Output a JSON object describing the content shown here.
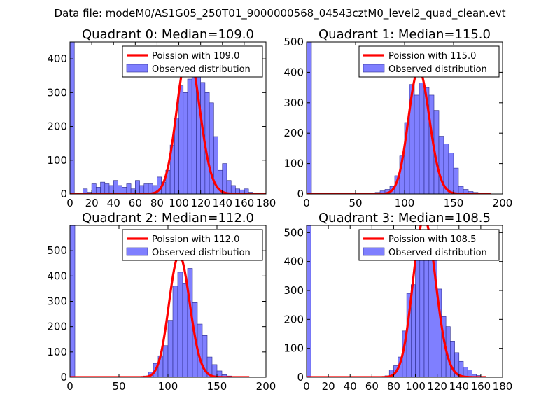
{
  "figure": {
    "suptitle": "Data file: modeM0/AS1G05_250T01_9000000568_04543cztM0_level2_quad_clean.evt"
  },
  "colors": {
    "bar_fill": "#7f7fff",
    "bar_stroke": "#2a2a8c",
    "curve": "#ff0000",
    "axis": "#000000",
    "background": "#ffffff"
  },
  "chart_data": [
    {
      "type": "bar",
      "title": "Quadrant 0: Median=109.0",
      "xlim": [
        0,
        180
      ],
      "ylim": [
        0,
        450
      ],
      "xticks": [
        0,
        20,
        40,
        60,
        80,
        100,
        120,
        140,
        160,
        180
      ],
      "yticks": [
        0,
        100,
        200,
        300,
        400
      ],
      "bin_width": 4,
      "bins": [
        [
          0,
          455
        ],
        [
          12,
          15
        ],
        [
          16,
          5
        ],
        [
          20,
          30
        ],
        [
          24,
          20
        ],
        [
          28,
          35
        ],
        [
          32,
          30
        ],
        [
          36,
          25
        ],
        [
          40,
          40
        ],
        [
          44,
          25
        ],
        [
          48,
          20
        ],
        [
          52,
          30
        ],
        [
          56,
          15
        ],
        [
          60,
          40
        ],
        [
          64,
          25
        ],
        [
          68,
          30
        ],
        [
          72,
          30
        ],
        [
          76,
          25
        ],
        [
          80,
          50
        ],
        [
          84,
          35
        ],
        [
          88,
          70
        ],
        [
          92,
          145
        ],
        [
          96,
          225
        ],
        [
          100,
          320
        ],
        [
          104,
          300
        ],
        [
          108,
          340
        ],
        [
          112,
          375
        ],
        [
          116,
          375
        ],
        [
          120,
          330
        ],
        [
          124,
          300
        ],
        [
          128,
          270
        ],
        [
          132,
          170
        ],
        [
          136,
          70
        ],
        [
          140,
          90
        ],
        [
          144,
          40
        ],
        [
          148,
          25
        ],
        [
          152,
          15
        ],
        [
          156,
          12
        ],
        [
          160,
          15
        ],
        [
          164,
          5
        ],
        [
          168,
          3
        ]
      ],
      "median": 109.0,
      "curve_xmax": 180,
      "legend": [
        "Poission with 109.0",
        "Observed distribution"
      ]
    },
    {
      "type": "bar",
      "title": "Quadrant 1: Median=115.0",
      "xlim": [
        0,
        200
      ],
      "ylim": [
        0,
        500
      ],
      "xticks": [
        0,
        50,
        100,
        150,
        200
      ],
      "yticks": [
        0,
        100,
        200,
        300,
        400,
        500
      ],
      "bin_width": 5,
      "bins": [
        [
          0,
          500
        ],
        [
          70,
          5
        ],
        [
          75,
          10
        ],
        [
          80,
          15
        ],
        [
          85,
          25
        ],
        [
          90,
          60
        ],
        [
          95,
          125
        ],
        [
          100,
          235
        ],
        [
          105,
          360
        ],
        [
          110,
          325
        ],
        [
          115,
          365
        ],
        [
          120,
          350
        ],
        [
          125,
          325
        ],
        [
          130,
          275
        ],
        [
          135,
          190
        ],
        [
          140,
          165
        ],
        [
          145,
          135
        ],
        [
          150,
          85
        ],
        [
          155,
          25
        ],
        [
          160,
          15
        ],
        [
          165,
          8
        ],
        [
          170,
          5
        ]
      ],
      "median": 115.0,
      "curve_xmax": 188,
      "legend": [
        "Poission with 115.0",
        "Observed distribution"
      ]
    },
    {
      "type": "bar",
      "title": "Quadrant 2: Median=112.0",
      "xlim": [
        0,
        200
      ],
      "ylim": [
        0,
        600
      ],
      "xticks": [
        0,
        50,
        100,
        150,
        200
      ],
      "yticks": [
        0,
        100,
        200,
        300,
        400,
        500
      ],
      "bin_width": 5,
      "bins": [
        [
          0,
          600
        ],
        [
          75,
          5
        ],
        [
          80,
          20
        ],
        [
          85,
          55
        ],
        [
          90,
          85
        ],
        [
          95,
          125
        ],
        [
          100,
          225
        ],
        [
          105,
          360
        ],
        [
          110,
          415
        ],
        [
          115,
          370
        ],
        [
          120,
          430
        ],
        [
          125,
          295
        ],
        [
          130,
          210
        ],
        [
          135,
          165
        ],
        [
          140,
          80
        ],
        [
          145,
          50
        ],
        [
          150,
          25
        ],
        [
          155,
          10
        ],
        [
          160,
          5
        ]
      ],
      "median": 112.0,
      "curve_xmax": 183,
      "legend": [
        "Poission with 112.0",
        "Observed distribution"
      ]
    },
    {
      "type": "bar",
      "title": "Quadrant 3: Median=108.5",
      "xlim": [
        0,
        180
      ],
      "ylim": [
        0,
        525
      ],
      "xticks": [
        0,
        20,
        40,
        60,
        80,
        100,
        120,
        140,
        160,
        180
      ],
      "yticks": [
        0,
        100,
        200,
        300,
        400,
        500
      ],
      "bin_width": 4,
      "bins": [
        [
          0,
          525
        ],
        [
          72,
          5
        ],
        [
          76,
          25
        ],
        [
          80,
          40
        ],
        [
          84,
          70
        ],
        [
          88,
          160
        ],
        [
          92,
          290
        ],
        [
          96,
          320
        ],
        [
          100,
          430
        ],
        [
          104,
          490
        ],
        [
          108,
          475
        ],
        [
          112,
          440
        ],
        [
          116,
          420
        ],
        [
          120,
          305
        ],
        [
          124,
          210
        ],
        [
          128,
          175
        ],
        [
          132,
          125
        ],
        [
          136,
          85
        ],
        [
          140,
          55
        ],
        [
          144,
          35
        ],
        [
          148,
          25
        ],
        [
          152,
          10
        ],
        [
          156,
          6
        ],
        [
          160,
          3
        ]
      ],
      "median": 108.5,
      "curve_xmax": 165,
      "legend": [
        "Poission with 108.5",
        "Observed distribution"
      ]
    }
  ]
}
